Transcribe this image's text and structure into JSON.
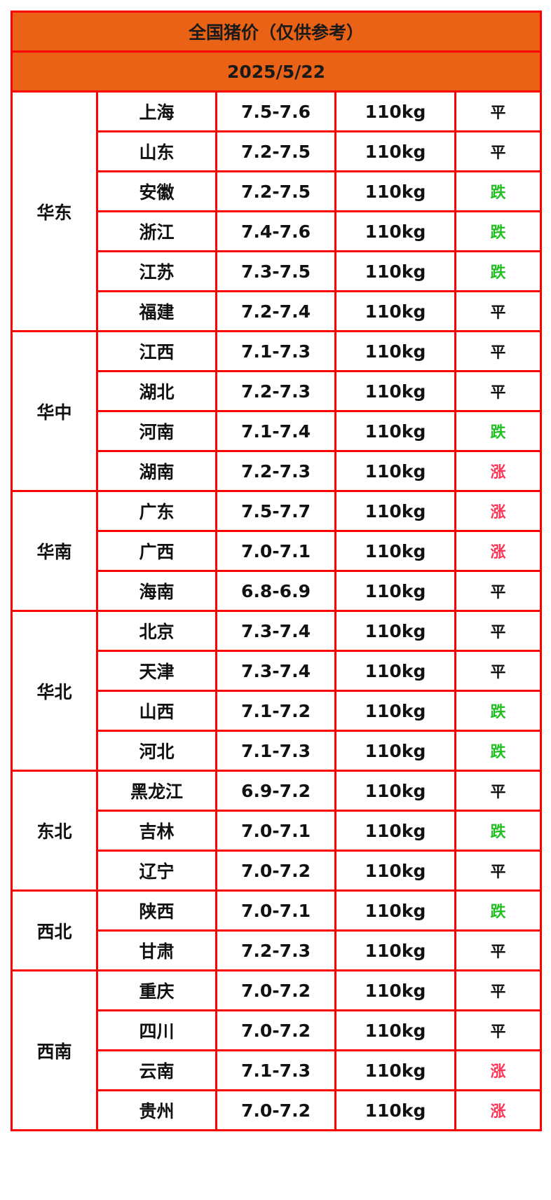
{
  "title": "全国猪价（仅供参考）",
  "date": "2025/5/22",
  "colors": {
    "header_bg": "#e96215",
    "border": "#ff0000",
    "rise": "#ff3355",
    "fall": "#22c022",
    "flat": "#111111"
  },
  "regions": [
    {
      "name": "华东",
      "rows": [
        {
          "province": "上海",
          "price": "7.5-7.6",
          "weight": "110kg",
          "trend": "平"
        },
        {
          "province": "山东",
          "price": "7.2-7.5",
          "weight": "110kg",
          "trend": "平"
        },
        {
          "province": "安徽",
          "price": "7.2-7.5",
          "weight": "110kg",
          "trend": "跌"
        },
        {
          "province": "浙江",
          "price": "7.4-7.6",
          "weight": "110kg",
          "trend": "跌"
        },
        {
          "province": "江苏",
          "price": "7.3-7.5",
          "weight": "110kg",
          "trend": "跌"
        },
        {
          "province": "福建",
          "price": "7.2-7.4",
          "weight": "110kg",
          "trend": "平"
        }
      ]
    },
    {
      "name": "华中",
      "rows": [
        {
          "province": "江西",
          "price": "7.1-7.3",
          "weight": "110kg",
          "trend": "平"
        },
        {
          "province": "湖北",
          "price": "7.2-7.3",
          "weight": "110kg",
          "trend": "平"
        },
        {
          "province": "河南",
          "price": "7.1-7.4",
          "weight": "110kg",
          "trend": "跌"
        },
        {
          "province": "湖南",
          "price": "7.2-7.3",
          "weight": "110kg",
          "trend": "涨"
        }
      ]
    },
    {
      "name": "华南",
      "rows": [
        {
          "province": "广东",
          "price": "7.5-7.7",
          "weight": "110kg",
          "trend": "涨"
        },
        {
          "province": "广西",
          "price": "7.0-7.1",
          "weight": "110kg",
          "trend": "涨"
        },
        {
          "province": "海南",
          "price": "6.8-6.9",
          "weight": "110kg",
          "trend": "平"
        }
      ]
    },
    {
      "name": "华北",
      "rows": [
        {
          "province": "北京",
          "price": "7.3-7.4",
          "weight": "110kg",
          "trend": "平"
        },
        {
          "province": "天津",
          "price": "7.3-7.4",
          "weight": "110kg",
          "trend": "平"
        },
        {
          "province": "山西",
          "price": "7.1-7.2",
          "weight": "110kg",
          "trend": "跌"
        },
        {
          "province": "河北",
          "price": "7.1-7.3",
          "weight": "110kg",
          "trend": "跌"
        }
      ]
    },
    {
      "name": "东北",
      "rows": [
        {
          "province": "黑龙江",
          "price": "6.9-7.2",
          "weight": "110kg",
          "trend": "平"
        },
        {
          "province": "吉林",
          "price": "7.0-7.1",
          "weight": "110kg",
          "trend": "跌"
        },
        {
          "province": "辽宁",
          "price": "7.0-7.2",
          "weight": "110kg",
          "trend": "平"
        }
      ]
    },
    {
      "name": "西北",
      "rows": [
        {
          "province": "陕西",
          "price": "7.0-7.1",
          "weight": "110kg",
          "trend": "跌"
        },
        {
          "province": "甘肃",
          "price": "7.2-7.3",
          "weight": "110kg",
          "trend": "平"
        }
      ]
    },
    {
      "name": "西南",
      "rows": [
        {
          "province": "重庆",
          "price": "7.0-7.2",
          "weight": "110kg",
          "trend": "平"
        },
        {
          "province": "四川",
          "price": "7.0-7.2",
          "weight": "110kg",
          "trend": "平"
        },
        {
          "province": "云南",
          "price": "7.1-7.3",
          "weight": "110kg",
          "trend": "涨"
        },
        {
          "province": "贵州",
          "price": "7.0-7.2",
          "weight": "110kg",
          "trend": "涨"
        }
      ]
    }
  ]
}
